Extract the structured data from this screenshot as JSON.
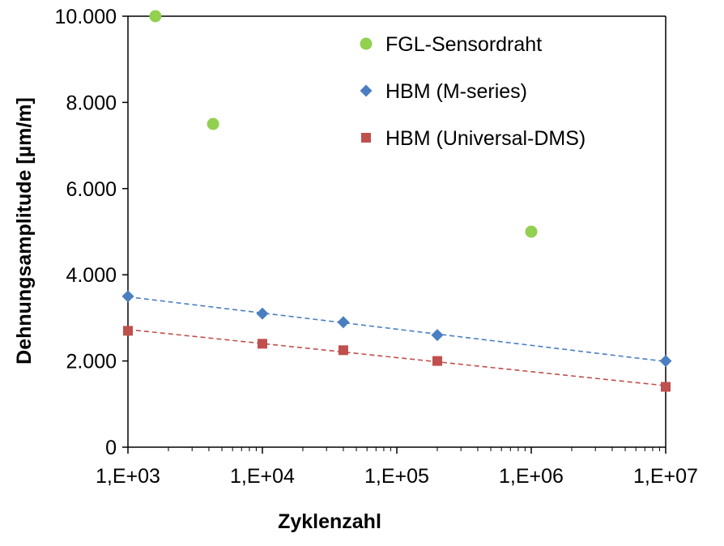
{
  "chart_data": {
    "type": "scatter",
    "xlabel": "Zyklenzahl",
    "ylabel": "Dehnungsamplitude [µm/m]",
    "x_scale": "log",
    "xlim": [
      1000,
      10000000
    ],
    "ylim": [
      0,
      10000
    ],
    "x_ticks": [
      1000,
      10000,
      100000,
      1000000,
      10000000
    ],
    "x_tick_labels": [
      "1,E+03",
      "1,E+04",
      "1,E+05",
      "1,E+06",
      "1,E+07"
    ],
    "y_ticks": [
      0,
      2000,
      4000,
      6000,
      8000,
      10000
    ],
    "y_tick_labels": [
      "0",
      "2.000",
      "4.000",
      "6.000",
      "8.000",
      "10.000"
    ],
    "grid": false,
    "legend_position": "top-right",
    "series": [
      {
        "name": "FGL-Sensordraht",
        "marker": "circle",
        "color": "#92D050",
        "trendline": false,
        "points": [
          {
            "x": 1600,
            "y": 10000
          },
          {
            "x": 4300,
            "y": 7500
          },
          {
            "x": 1000000,
            "y": 5000
          }
        ]
      },
      {
        "name": "HBM (M-series)",
        "marker": "diamond",
        "color": "#4A7EC1",
        "trendline": true,
        "points": [
          {
            "x": 1000,
            "y": 3500
          },
          {
            "x": 10000,
            "y": 3100
          },
          {
            "x": 40000,
            "y": 2900
          },
          {
            "x": 200000,
            "y": 2600
          },
          {
            "x": 10000000,
            "y": 2000
          }
        ]
      },
      {
        "name": "HBM (Universal-DMS)",
        "marker": "square",
        "color": "#C0504D",
        "trendline": true,
        "points": [
          {
            "x": 1000,
            "y": 2700
          },
          {
            "x": 10000,
            "y": 2400
          },
          {
            "x": 40000,
            "y": 2250
          },
          {
            "x": 200000,
            "y": 2000
          },
          {
            "x": 10000000,
            "y": 1400
          }
        ]
      }
    ]
  }
}
